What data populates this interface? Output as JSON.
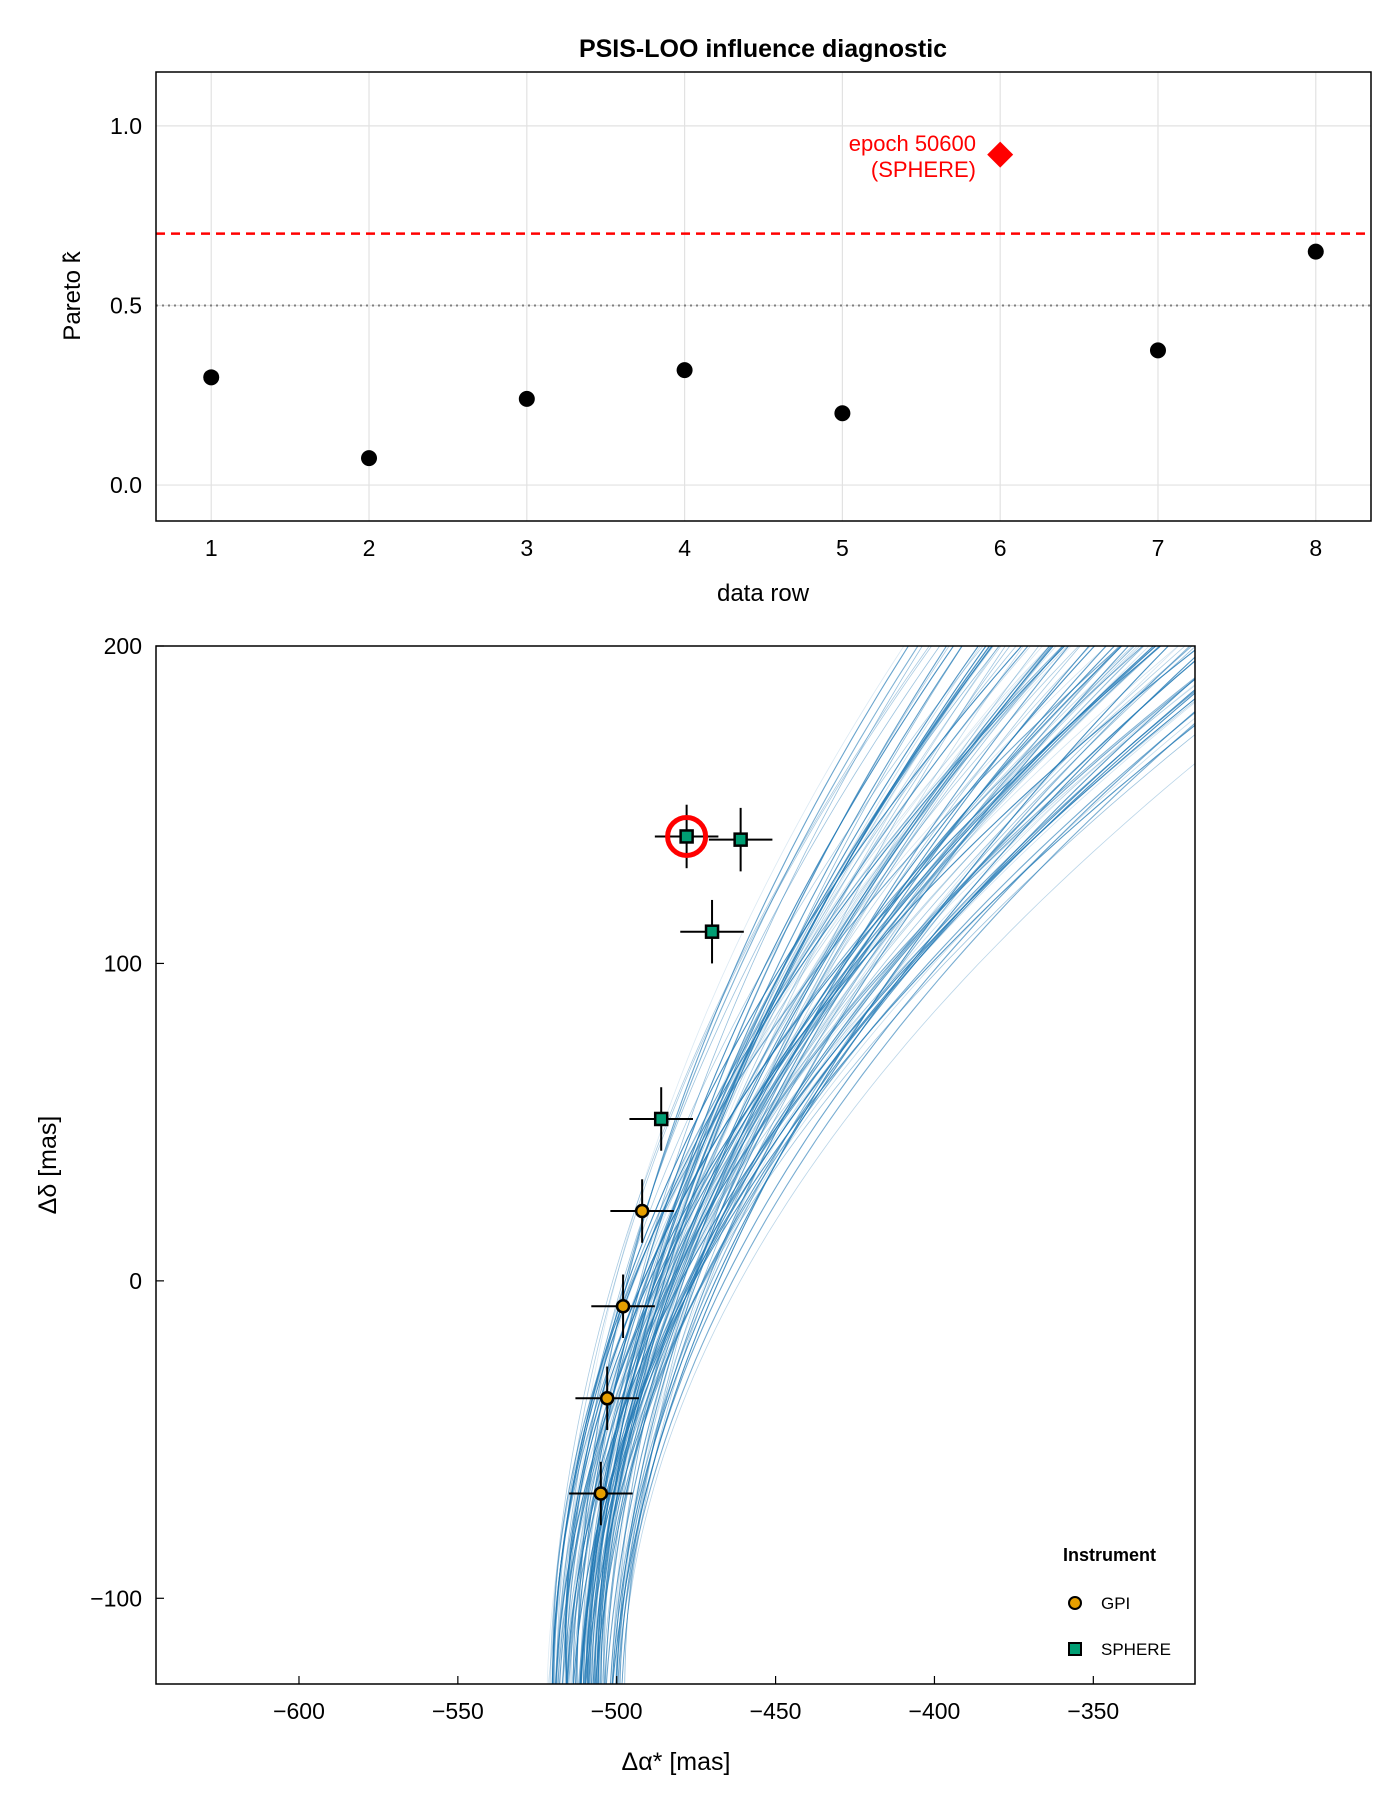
{
  "chart_data": [
    {
      "type": "scatter",
      "title": "PSIS-LOO influence diagnostic",
      "xlabel": "data row",
      "ylabel": "Pareto k̂",
      "xlim": [
        0.65,
        8.35
      ],
      "ylim": [
        -0.1,
        1.15
      ],
      "xticks": [
        "1",
        "2",
        "3",
        "4",
        "5",
        "6",
        "7",
        "8"
      ],
      "yticks": [
        "0.0",
        "0.5",
        "1.0"
      ],
      "grid": true,
      "points": [
        {
          "x": 1,
          "y": 0.3
        },
        {
          "x": 2,
          "y": 0.075
        },
        {
          "x": 3,
          "y": 0.24
        },
        {
          "x": 4,
          "y": 0.32
        },
        {
          "x": 5,
          "y": 0.2
        },
        {
          "x": 7,
          "y": 0.375
        },
        {
          "x": 8,
          "y": 0.65
        }
      ],
      "flagged_point": {
        "x": 6,
        "y": 0.92,
        "label_line1": "epoch 50600",
        "label_line2": "(SPHERE)",
        "color": "#ff0000"
      },
      "reference_lines": [
        {
          "y": 0.7,
          "style": "dashed",
          "color": "#ff0000"
        },
        {
          "y": 0.5,
          "style": "dotted",
          "color": "#808080"
        }
      ]
    },
    {
      "type": "scatter",
      "title": "",
      "xlabel": "Δα* [mas]",
      "ylabel": "Δδ [mas]",
      "xlim": [
        -645,
        -318
      ],
      "ylim": [
        -127,
        200
      ],
      "xticks": [
        "−600",
        "−550",
        "−500",
        "−450",
        "−400",
        "−350"
      ],
      "yticks": [
        "−100",
        "0",
        "100",
        "200"
      ],
      "grid": false,
      "orbit_color": "#1f77b4",
      "series": [
        {
          "name": "GPI",
          "marker": "circle",
          "color": "#e69f00",
          "points": [
            {
              "x": -505,
              "y": -67,
              "xerr": 10,
              "yerr": 10
            },
            {
              "x": -503,
              "y": -37,
              "xerr": 10,
              "yerr": 10
            },
            {
              "x": -498,
              "y": -8,
              "xerr": 10,
              "yerr": 10
            },
            {
              "x": -492,
              "y": 22,
              "xerr": 10,
              "yerr": 10
            }
          ]
        },
        {
          "name": "SPHERE",
          "marker": "square",
          "color": "#009e73",
          "points": [
            {
              "x": -486,
              "y": 51,
              "xerr": 10,
              "yerr": 10
            },
            {
              "x": -470,
              "y": 110,
              "xerr": 10,
              "yerr": 10
            },
            {
              "x": -478,
              "y": 140,
              "xerr": 10,
              "yerr": 10
            },
            {
              "x": -461,
              "y": 139,
              "xerr": 10,
              "yerr": 10
            }
          ]
        }
      ],
      "highlight": {
        "x": -478,
        "y": 140,
        "color": "#ff0000"
      },
      "legend": {
        "title": "Instrument",
        "position": "bottom-right"
      }
    }
  ]
}
